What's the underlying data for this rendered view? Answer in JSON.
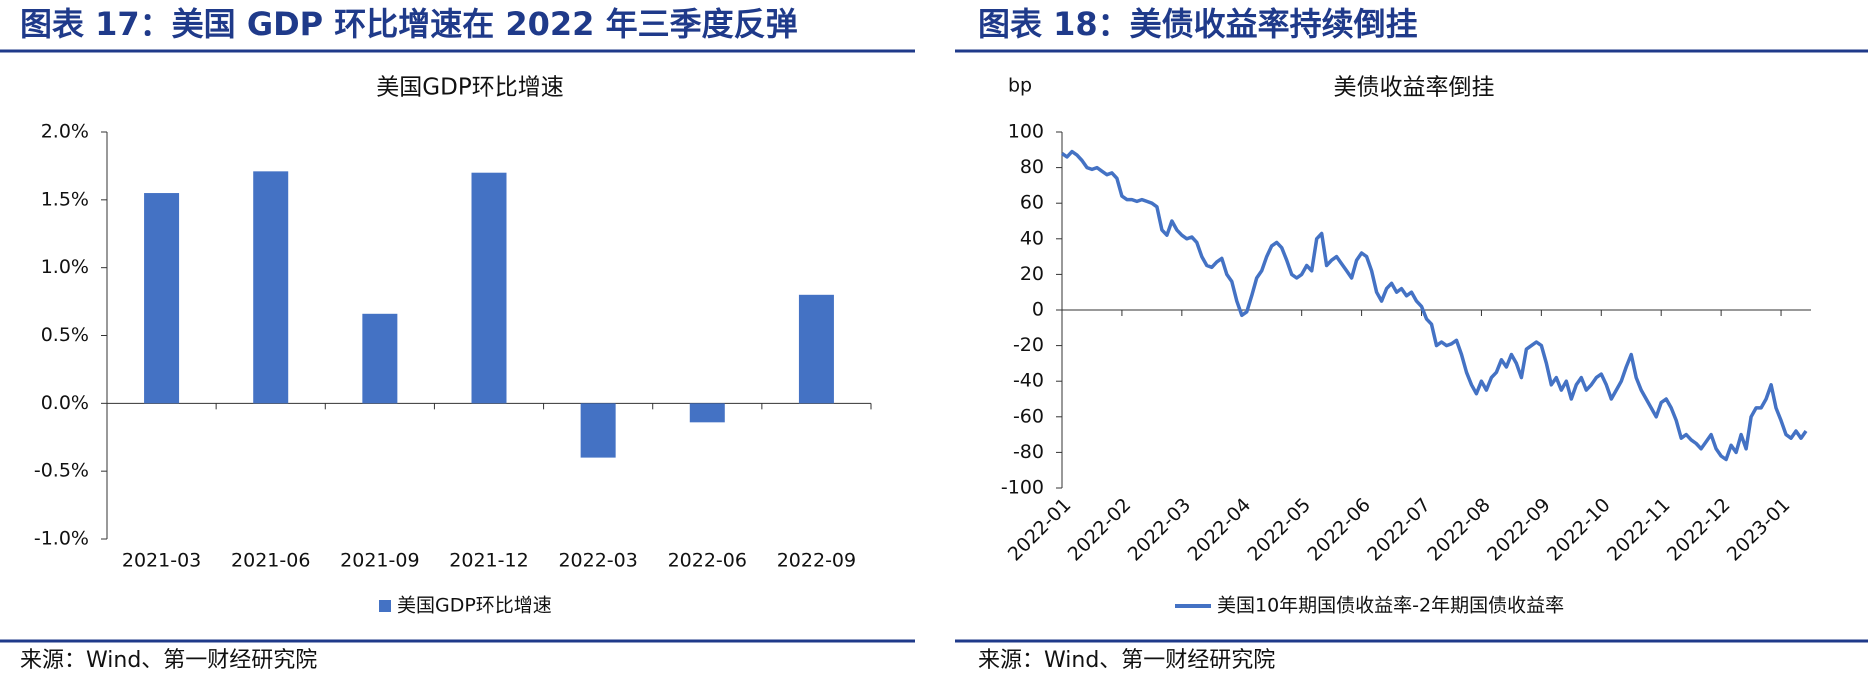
{
  "chart_data": [
    {
      "type": "bar",
      "caption": "图表 17：美国 GDP 环比增速在 2022 年三季度反弹",
      "title": "美国GDP环比增速",
      "source": "来源：Wind、第一财经研究院",
      "categories": [
        "2021-03",
        "2021-06",
        "2021-09",
        "2021-12",
        "2022-03",
        "2022-06",
        "2022-09"
      ],
      "series": [
        {
          "name": "美国GDP环比增速",
          "color": "#4472c4",
          "values": [
            1.55,
            1.71,
            0.66,
            1.7,
            -0.4,
            -0.14,
            0.8
          ]
        }
      ],
      "ylim": [
        -1,
        2
      ],
      "yticks": [
        {
          "value": 2,
          "label": "2.0%"
        },
        {
          "value": 1.5,
          "label": "1.5%"
        },
        {
          "value": 1,
          "label": "1.0%"
        },
        {
          "value": 0.5,
          "label": "0.5%"
        },
        {
          "value": 0,
          "label": "0.0%"
        },
        {
          "value": -0.5,
          "label": "-0.5%"
        },
        {
          "value": -1,
          "label": "-1.0%"
        }
      ],
      "legend": "bottom"
    },
    {
      "type": "line",
      "caption": "图表 18：美债收益率持续倒挂",
      "title": "美债收益率倒挂",
      "ylabel": "bp",
      "source": "来源：Wind、第一财经研究院",
      "series": [
        {
          "name": "美国10年期国债收益率-2年期国债收益率",
          "color": "#4472c4",
          "values": [
            88,
            86,
            89,
            87,
            84,
            80,
            79,
            80,
            78,
            76,
            77,
            74,
            64,
            62,
            62,
            61,
            62,
            61,
            60,
            58,
            45,
            42,
            50,
            45,
            42,
            40,
            41,
            38,
            30,
            25,
            24,
            27,
            29,
            20,
            16,
            5,
            -3,
            -1,
            8,
            18,
            22,
            30,
            36,
            38,
            35,
            28,
            20,
            18,
            20,
            25,
            22,
            40,
            43,
            25,
            28,
            30,
            26,
            22,
            18,
            28,
            32,
            30,
            22,
            10,
            5,
            12,
            15,
            10,
            12,
            8,
            10,
            5,
            2,
            -5,
            -8,
            -20,
            -18,
            -20,
            -19,
            -17,
            -25,
            -35,
            -42,
            -47,
            -40,
            -45,
            -38,
            -35,
            -28,
            -32,
            -25,
            -30,
            -38,
            -22,
            -20,
            -18,
            -20,
            -30,
            -42,
            -38,
            -45,
            -40,
            -50,
            -42,
            -38,
            -45,
            -42,
            -38,
            -36,
            -42,
            -50,
            -45,
            -40,
            -32,
            -25,
            -38,
            -45,
            -50,
            -55,
            -60,
            -52,
            -50,
            -55,
            -62,
            -72,
            -70,
            -73,
            -75,
            -78,
            -74,
            -70,
            -78,
            -82,
            -84,
            -76,
            -80,
            -70,
            -78,
            -60,
            -55,
            -55,
            -50,
            -42,
            -55,
            -62,
            -70,
            -72,
            -68,
            -72,
            -68
          ]
        }
      ],
      "xlim": [
        0,
        150
      ],
      "xticks": [
        {
          "value": 0,
          "label": "2022-01"
        },
        {
          "value": 12,
          "label": "2022-02"
        },
        {
          "value": 24,
          "label": "2022-03"
        },
        {
          "value": 36,
          "label": "2022-04"
        },
        {
          "value": 48,
          "label": "2022-05"
        },
        {
          "value": 60,
          "label": "2022-06"
        },
        {
          "value": 72,
          "label": "2022-07"
        },
        {
          "value": 84,
          "label": "2022-08"
        },
        {
          "value": 96,
          "label": "2022-09"
        },
        {
          "value": 108,
          "label": "2022-10"
        },
        {
          "value": 120,
          "label": "2022-11"
        },
        {
          "value": 132,
          "label": "2022-12"
        },
        {
          "value": 144,
          "label": "2023-01"
        }
      ],
      "ylim": [
        -100,
        100
      ],
      "yticks": [
        100,
        80,
        60,
        40,
        20,
        0,
        -20,
        -40,
        -60,
        -80,
        -100
      ],
      "legend": "bottom"
    }
  ]
}
